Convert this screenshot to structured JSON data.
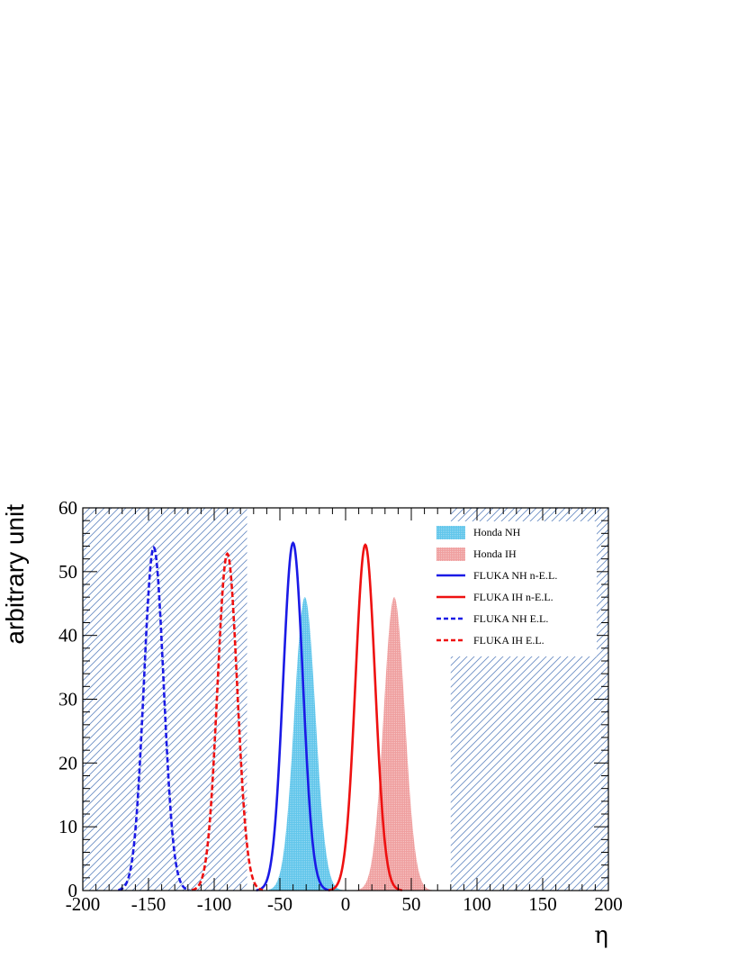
{
  "chart_data": {
    "type": "line",
    "title": "",
    "xlabel": "η",
    "ylabel": "arbitrary unit",
    "xlim": [
      -200,
      200
    ],
    "ylim": [
      0,
      60
    ],
    "xticks": [
      -200,
      -150,
      -100,
      -50,
      0,
      50,
      100,
      150,
      200
    ],
    "xtick_labels": [
      "-200",
      "-150",
      "-100",
      "-50",
      "0",
      "50",
      "100",
      "150",
      "200"
    ],
    "yticks": [
      0,
      10,
      20,
      30,
      40,
      50,
      60
    ],
    "ytick_labels": [
      "0",
      "10",
      "20",
      "30",
      "40",
      "50",
      "60"
    ],
    "grid": false,
    "legend_position": "top-right",
    "excluded_regions": [
      {
        "x_range": [
          -200,
          -75
        ],
        "color": "#5b7fb8",
        "style": "hatched"
      },
      {
        "x_range": [
          80,
          200
        ],
        "color": "#5b7fb8",
        "style": "hatched"
      }
    ],
    "series": [
      {
        "name": "Honda NH",
        "style": "filled",
        "color": "#61c6eb",
        "peak_x": -31,
        "peak_y": 46,
        "sigma": 8.0,
        "x_range": [
          -62,
          -2
        ]
      },
      {
        "name": "Honda IH",
        "style": "filled",
        "color": "#ef9f9f",
        "peak_x": 37,
        "peak_y": 46,
        "sigma": 8.0,
        "x_range": [
          6,
          67
        ]
      },
      {
        "name": "FLUKA NH n-E.L.",
        "style": "solid",
        "color": "#1a1ae6",
        "peak_x": -40,
        "peak_y": 54.5,
        "sigma": 7.5,
        "x_range": [
          -68,
          -12
        ]
      },
      {
        "name": "FLUKA IH n-E.L.",
        "style": "solid",
        "color": "#ee1111",
        "peak_x": 15,
        "peak_y": 54.2,
        "sigma": 7.5,
        "x_range": [
          -13,
          43
        ]
      },
      {
        "name": "FLUKA NH E.L.",
        "style": "dashed",
        "color": "#1a1ae6",
        "peak_x": -146,
        "peak_y": 53.8,
        "sigma": 7.5,
        "x_range": [
          -173,
          -119
        ]
      },
      {
        "name": "FLUKA IH E.L.",
        "style": "dashed",
        "color": "#ee1111",
        "peak_x": -90,
        "peak_y": 52.8,
        "sigma": 7.5,
        "x_range": [
          -117,
          -63
        ]
      }
    ]
  }
}
